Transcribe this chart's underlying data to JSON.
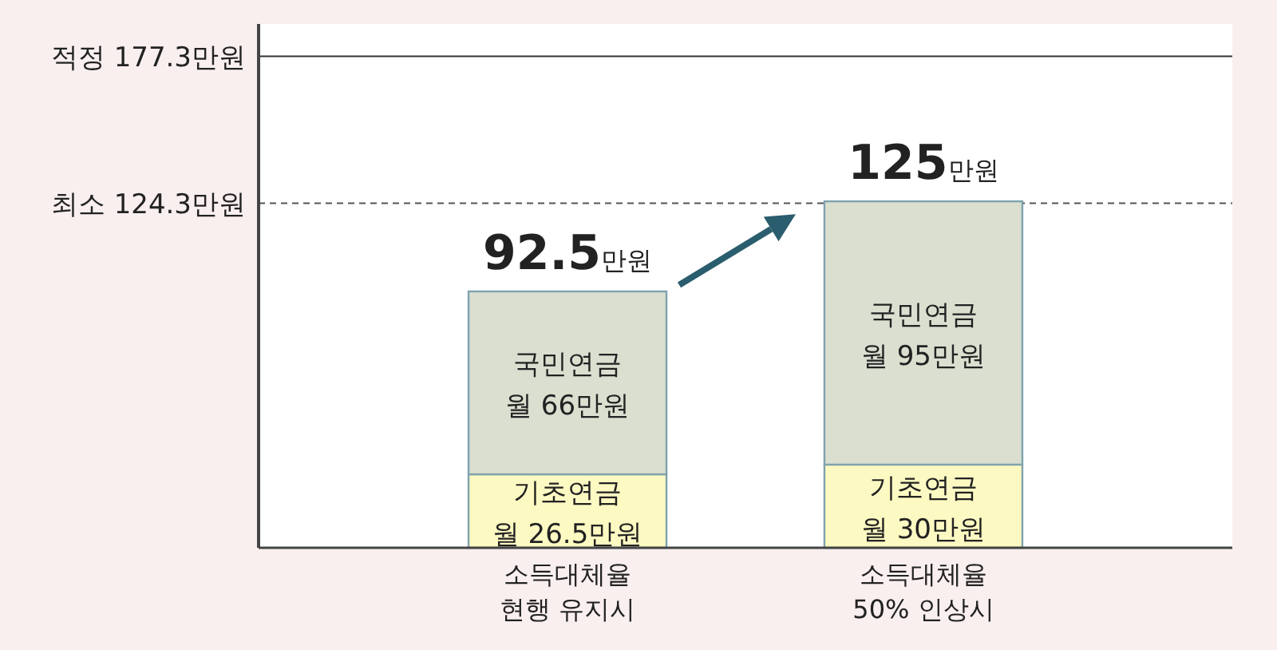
{
  "chart_data": {
    "type": "bar",
    "stacked": true,
    "categories": [
      "소득대체율\n현행 유지시",
      "소득대체율\n50% 인상시"
    ],
    "series": [
      {
        "name": "기초연금",
        "color": "#fdf9c2",
        "values": [
          26.5,
          30
        ],
        "value_labels": [
          "월 26.5만원",
          "월 30만원"
        ]
      },
      {
        "name": "국민연금",
        "color": "#dadfd0",
        "values": [
          66,
          95
        ],
        "value_labels": [
          "월 66만원",
          "월 95만원"
        ]
      }
    ],
    "totals": [
      "92.5만원",
      "125만원"
    ],
    "ylim": [
      0,
      189
    ],
    "tick_labels": "x",
    "legend": false,
    "ref_lines": [
      {
        "axis": "y",
        "value": 177.3,
        "label": "적정 177.3만원",
        "line_style": "solid",
        "color": "#333333"
      },
      {
        "axis": "y",
        "value": 124.3,
        "label": "최소 124.3만원",
        "line_style": "dashed",
        "color": "#555555"
      }
    ]
  }
}
